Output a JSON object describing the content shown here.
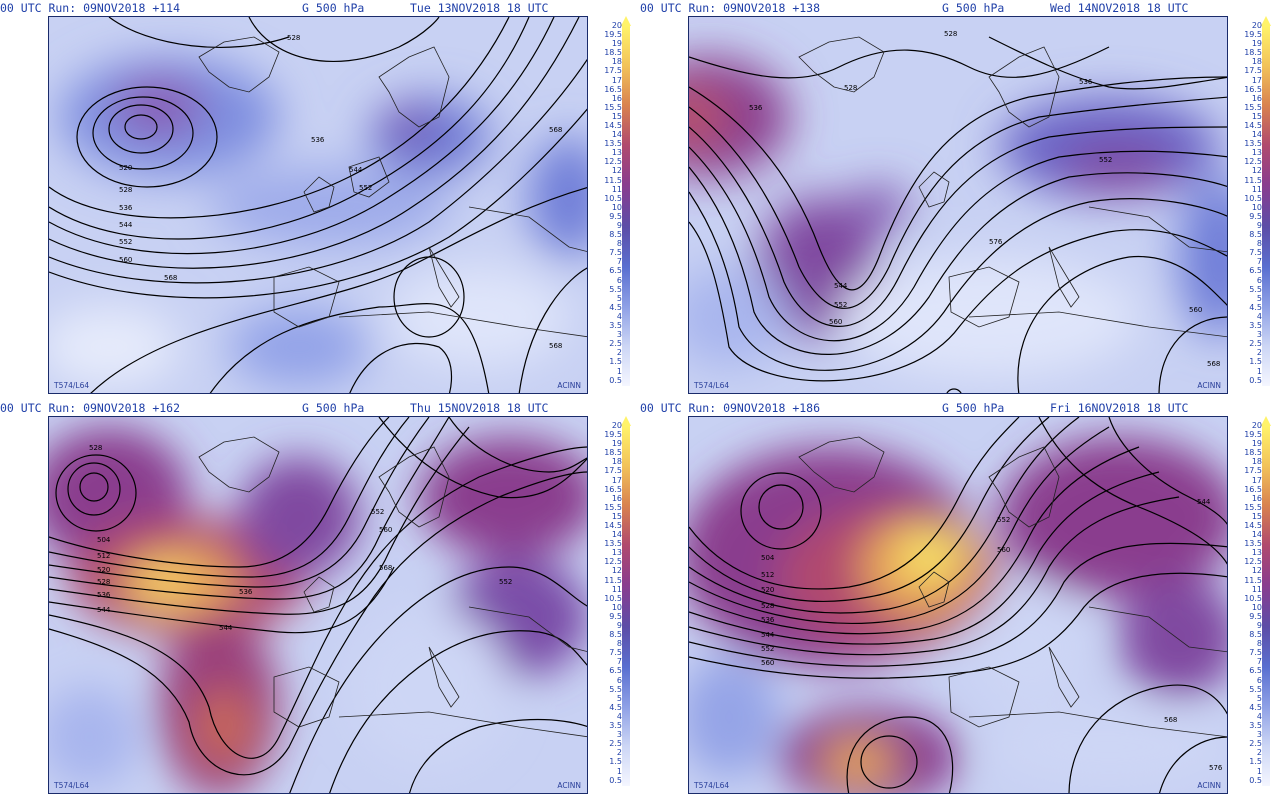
{
  "colors": {
    "header_text": "#1f3fa8",
    "contour": "#000000",
    "coast": "#202020",
    "scale": [
      "#f4f6ff",
      "#cdd6f5",
      "#8ea0e6",
      "#5a6fd0",
      "#5c4da8",
      "#8a3c8e",
      "#b14a6e",
      "#d9834f",
      "#f2c35a",
      "#fff36a"
    ]
  },
  "colorbar": {
    "ticks": [
      "20",
      "19.5",
      "19",
      "18.5",
      "18",
      "17.5",
      "17",
      "16.5",
      "16",
      "15.5",
      "15",
      "14.5",
      "14",
      "13.5",
      "13",
      "12.5",
      "12",
      "11.5",
      "11",
      "10.5",
      "10",
      "9.5",
      "9",
      "8.5",
      "8",
      "7.5",
      "7",
      "6.5",
      "6",
      "5.5",
      "5",
      "4.5",
      "4",
      "3.5",
      "3",
      "2.5",
      "2",
      "1.5",
      "1",
      "0.5"
    ]
  },
  "panels": [
    {
      "run": "00 UTC Run: 09NOV2018 +114",
      "level": "G 500 hPa",
      "valid": "Tue 13NOV2018 18 UTC",
      "footer_left": "T574/L64",
      "footer_right": "ACINN",
      "contour_labels": [
        "528",
        "536",
        "520",
        "528",
        "536",
        "544",
        "552",
        "560",
        "568",
        "544",
        "552",
        "568",
        "568"
      ]
    },
    {
      "run": "00 UTC Run: 09NOV2018 +138",
      "level": "G 500 hPa",
      "valid": "Wed 14NOV2018 18 UTC",
      "footer_left": "T574/L64",
      "footer_right": "ACINN",
      "contour_labels": [
        "528",
        "536",
        "528",
        "544",
        "552",
        "560",
        "576",
        "560",
        "568",
        "536",
        "552"
      ]
    },
    {
      "run": "00 UTC Run: 09NOV2018 +162",
      "level": "G 500 hPa",
      "valid": "Thu 15NOV2018 18 UTC",
      "footer_left": "T574/L64",
      "footer_right": "ACINN",
      "contour_labels": [
        "528",
        "504",
        "512",
        "520",
        "528",
        "536",
        "544",
        "536",
        "544",
        "552",
        "552",
        "560",
        "568"
      ]
    },
    {
      "run": "00 UTC Run: 09NOV2018 +186",
      "level": "G 500 hPa",
      "valid": "Fri 16NOV2018 18 UTC",
      "footer_left": "T574/L64",
      "footer_right": "ACINN",
      "contour_labels": [
        "504",
        "512",
        "520",
        "528",
        "536",
        "544",
        "552",
        "560",
        "544",
        "552",
        "560",
        "568",
        "576"
      ]
    }
  ]
}
